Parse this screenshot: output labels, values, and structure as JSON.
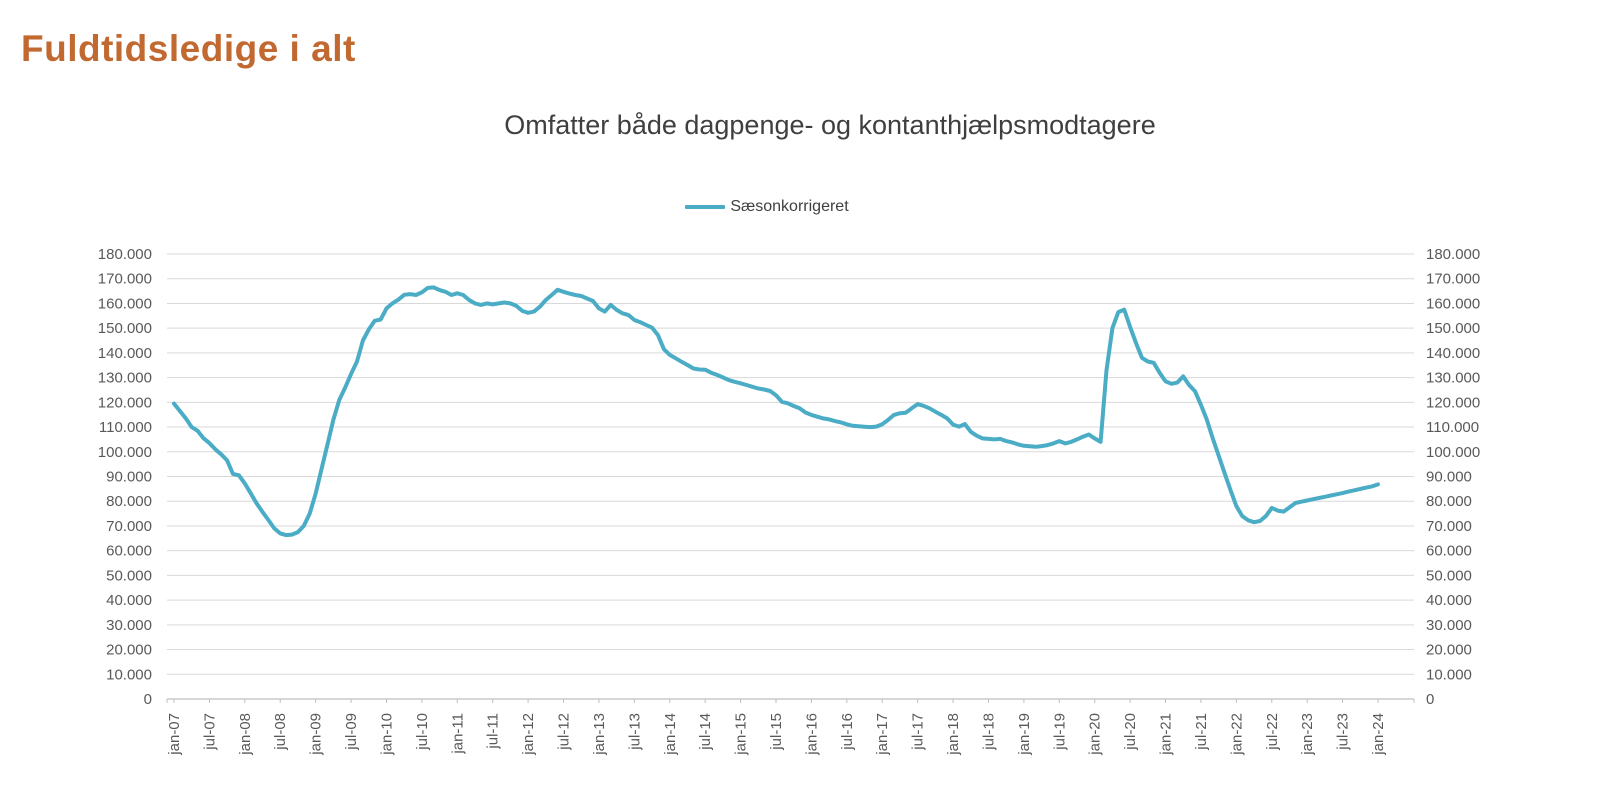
{
  "header": {
    "title": "Fuldtidsledige i alt",
    "title_color": "#c16930"
  },
  "chart": {
    "subtitle": "Omfatter både dagpenge- og kontanthjælpsmodtagere",
    "legend": [
      {
        "label": "Sæsonkorrigeret",
        "color": "#4BACC6"
      }
    ]
  },
  "chart_data": {
    "type": "line",
    "title": "Omfatter både dagpenge- og kontanthjælpsmodtagere",
    "legend_position": "top-center",
    "grid": "horizontal",
    "grid_color": "#d9d9d9",
    "axis_color": "#bfbfbf",
    "tick_label_color": "#595959",
    "ylim": [
      0,
      180000
    ],
    "y_ticks": {
      "values": [
        0,
        10000,
        20000,
        30000,
        40000,
        50000,
        60000,
        70000,
        80000,
        90000,
        100000,
        110000,
        120000,
        130000,
        140000,
        150000,
        160000,
        170000,
        180000
      ],
      "labels": [
        "0",
        "10.000",
        "20.000",
        "30.000",
        "40.000",
        "50.000",
        "60.000",
        "70.000",
        "80.000",
        "90.000",
        "100.000",
        "110.000",
        "120.000",
        "130.000",
        "140.000",
        "150.000",
        "160.000",
        "170.000",
        "180.000"
      ]
    },
    "x_tick_labels": [
      "jan-07",
      "jul-07",
      "jan-08",
      "jul-08",
      "jan-09",
      "jul-09",
      "jan-10",
      "jul-10",
      "jan-11",
      "jul-11",
      "jan-12",
      "jul-12",
      "jan-13",
      "jul-13",
      "jan-14",
      "jul-14",
      "jan-15",
      "jul-15",
      "jan-16",
      "jul-16",
      "jan-17",
      "jul-17",
      "jan-18",
      "jul-18",
      "jan-19",
      "jul-19",
      "jan-20",
      "jul-20",
      "jan-21",
      "jul-21",
      "jan-22",
      "jul-22",
      "jan-23",
      "jul-23",
      "jan-24"
    ],
    "x_tick_every": 6,
    "series": [
      {
        "name": "Sæsonkorrigeret",
        "color": "#4BACC6",
        "frequency": "monthly",
        "x_start": "jan-07",
        "x_end": "jan-24",
        "values": [
          119500,
          116500,
          113500,
          110000,
          108500,
          105500,
          103500,
          101000,
          99000,
          96500,
          91000,
          90500,
          87200,
          83200,
          79100,
          75700,
          72400,
          69000,
          67000,
          66300,
          66500,
          67500,
          70000,
          75000,
          83000,
          93000,
          103000,
          113000,
          121000,
          126000,
          131500,
          136500,
          145000,
          149500,
          153000,
          153500,
          158000,
          160000,
          161500,
          163500,
          163800,
          163400,
          164500,
          166300,
          166500,
          165400,
          164700,
          163400,
          164100,
          163400,
          161400,
          160000,
          159400,
          160000,
          159600,
          160000,
          160400,
          160000,
          159000,
          157000,
          156200,
          156700,
          158700,
          161400,
          163400,
          165500,
          164700,
          164000,
          163400,
          163000,
          162000,
          161000,
          158000,
          156700,
          159400,
          157400,
          156000,
          155300,
          153300,
          152400,
          151300,
          150200,
          147200,
          141500,
          139200,
          137800,
          136400,
          135100,
          133700,
          133300,
          133200,
          132000,
          131100,
          130100,
          129000,
          128300,
          127700,
          127000,
          126300,
          125600,
          125200,
          124600,
          122900,
          120200,
          119600,
          118500,
          117600,
          115900,
          114900,
          114200,
          113500,
          113100,
          112400,
          111900,
          111100,
          110500,
          110300,
          110100,
          110000,
          110200,
          111100,
          112900,
          114900,
          115600,
          115800,
          117600,
          119300,
          118600,
          117600,
          116200,
          114900,
          113500,
          111000,
          110200,
          111200,
          108100,
          106500,
          105400,
          105200,
          105000,
          105200,
          104300,
          103800,
          103000,
          102400,
          102200,
          102000,
          102300,
          102700,
          103400,
          104300,
          103400,
          104000,
          105000,
          106100,
          107000,
          105400,
          104000,
          133000,
          150000,
          156500,
          157500,
          150500,
          144000,
          138000,
          136500,
          136000,
          132000,
          128500,
          127500,
          128000,
          130500,
          127000,
          124500,
          119000,
          113000,
          105500,
          98500,
          91500,
          84500,
          78000,
          74000,
          72300,
          71500,
          72000,
          74000,
          77300,
          76200,
          75800,
          77500,
          79300,
          79800,
          80300,
          80800,
          81300,
          81800,
          82300,
          82800,
          83300,
          83900,
          84400,
          85000,
          85500,
          86000,
          86800
        ]
      }
    ]
  }
}
